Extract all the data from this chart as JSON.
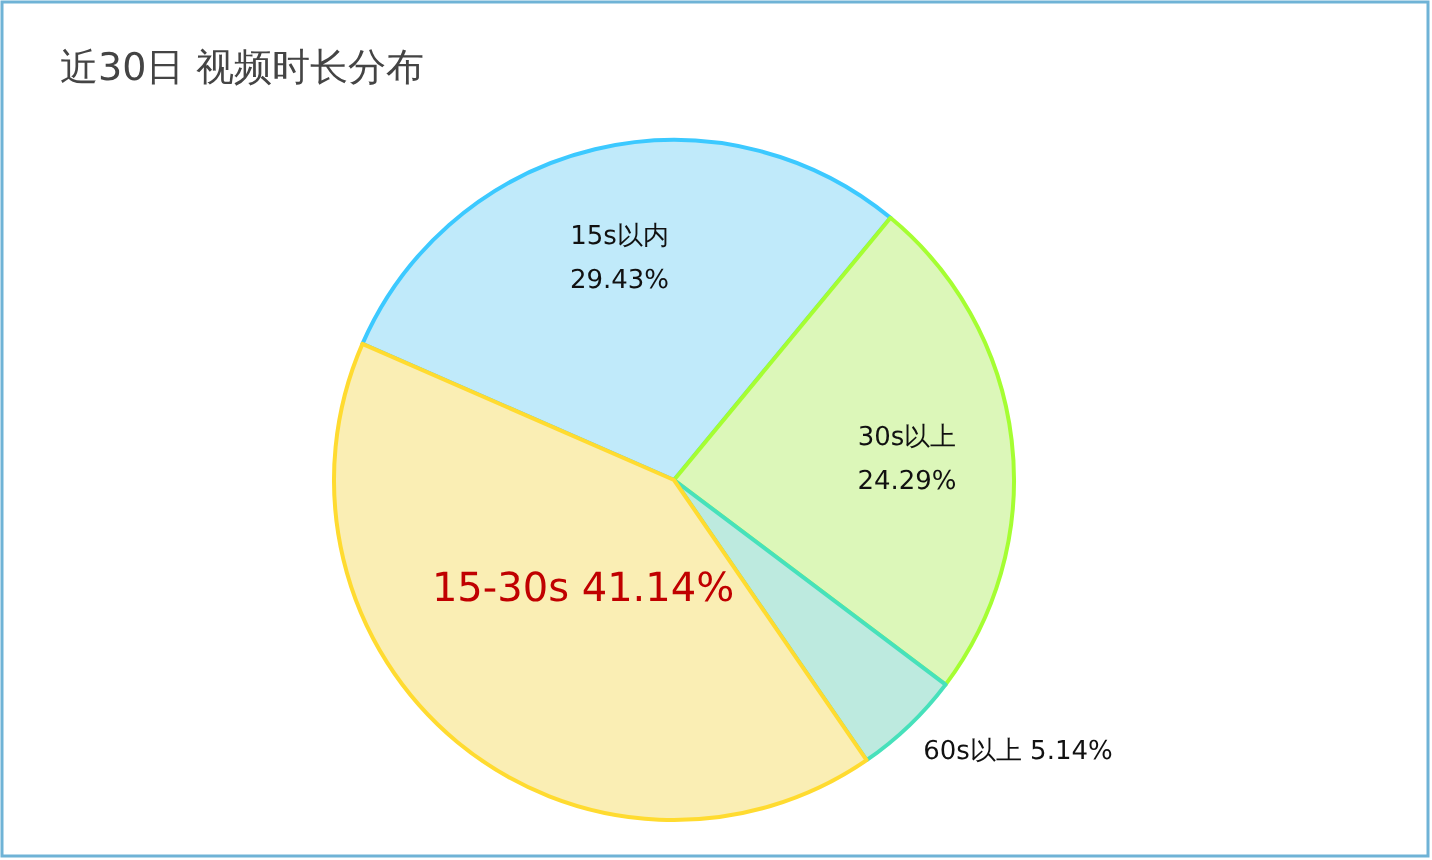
{
  "chart_data": {
    "type": "pie",
    "title": "近30日 视频时长分布",
    "categories": [
      "15s以内",
      "30s以上",
      "60s以上",
      "15-30s"
    ],
    "values": [
      29.43,
      24.29,
      5.14,
      41.14
    ],
    "value_labels": [
      "29.43%",
      "24.29%",
      "5.14%",
      "41.14%"
    ],
    "colors": [
      "#c0eafa",
      "#dcf7b9",
      "#bdeadf",
      "#faeeb4"
    ]
  }
}
